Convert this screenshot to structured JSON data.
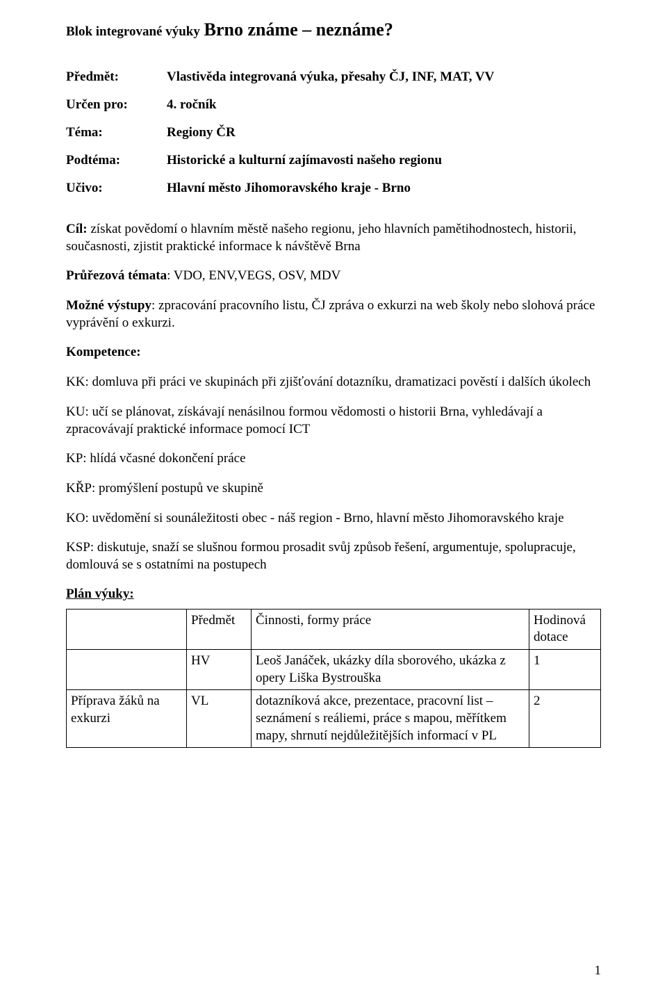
{
  "title": {
    "prefix": "Blok integrované výuky",
    "main": "Brno známe – neznáme?"
  },
  "meta": {
    "predmet_label": "Předmět:",
    "predmet_value": "Vlastivěda integrovaná výuka, přesahy ČJ, INF, MAT, VV",
    "urcen_label": "Určen pro:",
    "urcen_value": "4. ročník",
    "tema_label": "Téma:",
    "tema_value": "Regiony ČR",
    "podtema_label": "Podtéma:",
    "podtema_value": "Historické a kulturní zajímavosti našeho regionu",
    "ucivo_label": "Učivo:",
    "ucivo_value": "Hlavní město Jihomoravského kraje - Brno"
  },
  "cil": {
    "label": "Cíl:",
    "text": " získat povědomí o hlavním městě našeho regionu, jeho hlavních pamětihodnostech, historii, současnosti, zjistit praktické informace k návštěvě Brna"
  },
  "prurezova": {
    "label": "Průřezová témata",
    "text": ": VDO, ENV,VEGS, OSV, MDV"
  },
  "vystupy": {
    "label": "Možné výstupy",
    "text": ": zpracování pracovního listu, ČJ zpráva o exkurzi na web školy nebo slohová práce vyprávění o exkurzi."
  },
  "kompetence_label": "Kompetence:",
  "kk": "KK: domluva při práci ve skupinách při zjišťování dotazníku, dramatizaci pověstí i dalších úkolech",
  "ku": "KU: učí se plánovat, získávají nenásilnou formou vědomosti o historii Brna, vyhledávají a zpracovávají praktické informace pomocí ICT",
  "kp": "KP: hlídá včasné dokončení práce",
  "krp": "KŘP: promýšlení postupů ve skupině",
  "ko": "KO: uvědomění si sounáležitosti obec - náš region - Brno, hlavní město Jihomoravského kraje",
  "ksp": "KSP: diskutuje, snaží se slušnou formou prosadit svůj způsob řešení, argumentuje, spolupracuje, domlouvá se s ostatními na postupech",
  "plan_heading": "Plán výuky:",
  "plan": {
    "headers": {
      "left": "",
      "subject": "Předmět",
      "activities": "Činnosti, formy práce",
      "hours": "Hodinová dotace"
    },
    "rows": [
      {
        "left": "",
        "subject": "HV",
        "activities": "Leoš Janáček, ukázky díla sborového, ukázka z opery Liška Bystrouška",
        "hours": "1"
      },
      {
        "left": "Příprava žáků na exkurzi",
        "subject": "VL",
        "activities": "dotazníková akce, prezentace, pracovní list – seznámení s reáliemi, práce s mapou, měřítkem mapy, shrnutí nejdůležitějších informací v PL",
        "hours": "2"
      }
    ]
  },
  "page_number": "1"
}
